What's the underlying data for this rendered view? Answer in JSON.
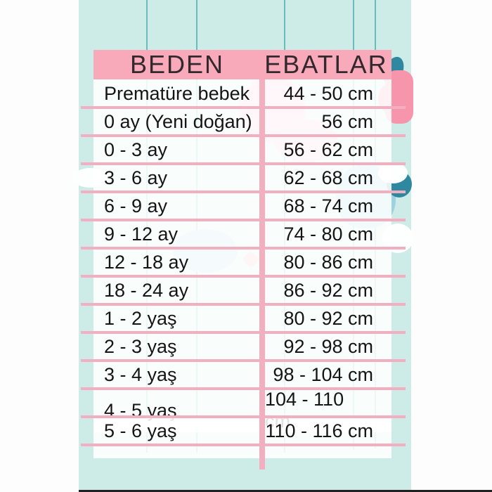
{
  "chart_data": {
    "type": "table",
    "title": "",
    "columns": [
      "BEDEN",
      "EBATLAR"
    ],
    "rows": [
      [
        "Prematüre bebek",
        "44 - 50 cm"
      ],
      [
        "0 ay (Yeni doğan)",
        "56 cm"
      ],
      [
        "0 - 3 ay",
        "56 - 62 cm"
      ],
      [
        "3 - 6 ay",
        "62 - 68 cm"
      ],
      [
        "6 - 9 ay",
        "68 - 74 cm"
      ],
      [
        "9 - 12 ay",
        "74 - 80 cm"
      ],
      [
        "12 - 18 ay",
        "80 - 86 cm"
      ],
      [
        "18 - 24 ay",
        "86 - 92 cm"
      ],
      [
        "1 - 2 yaş",
        "80 - 92 cm"
      ],
      [
        "2 - 3 yaş",
        "92 - 98 cm"
      ],
      [
        "3 - 4 yaş",
        "98 - 104 cm"
      ],
      [
        "4 - 5 yaş",
        "104 - 110 cm"
      ],
      [
        "5 - 6 yaş",
        "110 - 116 cm"
      ]
    ]
  },
  "colors": {
    "header_pink": "#f8a9ba",
    "grid_pink": "#f3aec0",
    "panel_teal": "#cdebe7",
    "string_teal": "#6abbbd",
    "accent_teal_dark": "#2e89a0",
    "blob_pink": "#f695ab",
    "text_dark": "#151515"
  }
}
